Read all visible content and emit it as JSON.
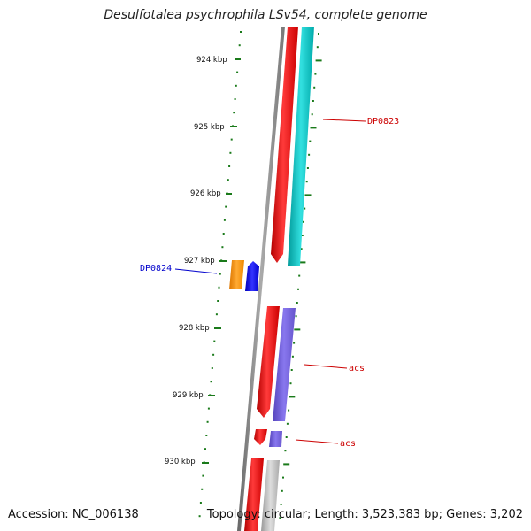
{
  "title": "Desulfotalea psychrophila LSv54, complete genome",
  "accession": "Accession: NC_006138",
  "summary": "Topology: circular; Length: 3,523,383 bp; Genes: 3,202",
  "colors": {
    "backbone": "#888888",
    "tick": "#1a7a1a",
    "forward_gene": "#ff0000",
    "cyan_feature": "#00cccc",
    "orange_feature": "#ff9900",
    "blue_feature": "#0000ff",
    "purple_feature": "#7766dd",
    "gray_feature": "#bbbbbb",
    "label_red": "#cc0000",
    "label_blue": "#0000cc"
  },
  "ticks": [
    "924 kbp",
    "925 kbp",
    "926 kbp",
    "927 kbp",
    "928 kbp",
    "929 kbp",
    "930 kbp"
  ],
  "gene_labels": [
    {
      "text": "DP0823",
      "color": "red"
    },
    {
      "text": "DP0824",
      "color": "blue"
    },
    {
      "text": "acs",
      "color": "red"
    },
    {
      "text": "acs",
      "color": "red"
    }
  ]
}
